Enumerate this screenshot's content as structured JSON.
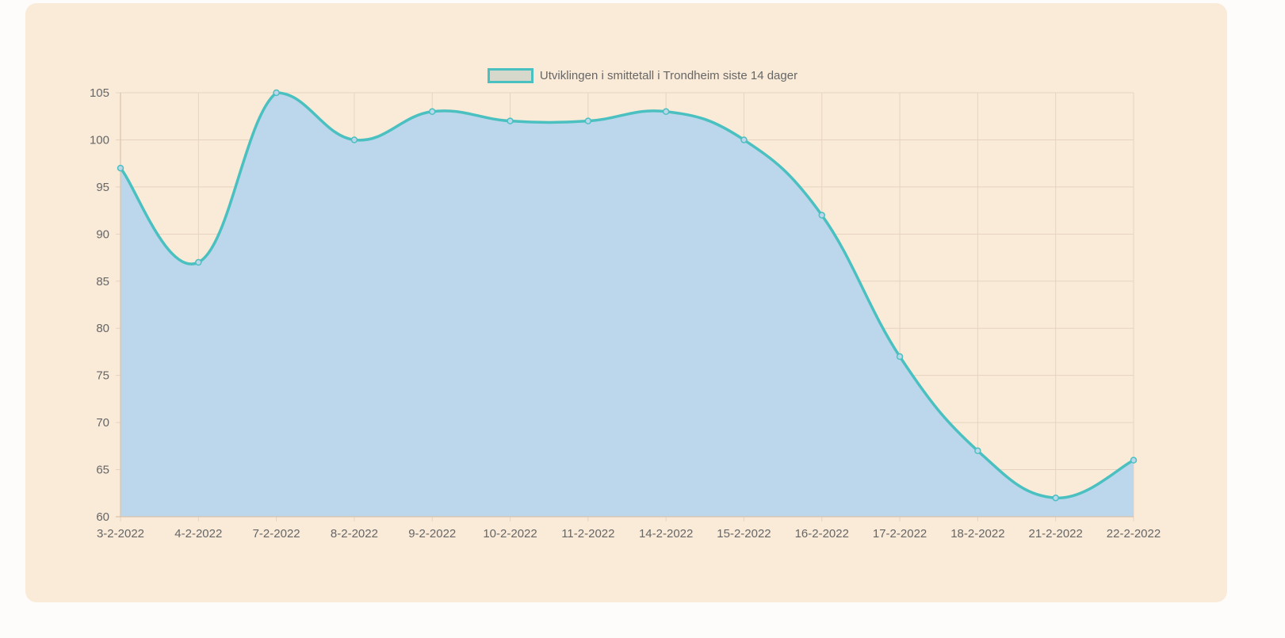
{
  "chart_data": {
    "type": "line",
    "filled": true,
    "title": "",
    "xlabel": "",
    "ylabel": "",
    "categories": [
      "3-2-2022",
      "4-2-2022",
      "7-2-2022",
      "8-2-2022",
      "9-2-2022",
      "10-2-2022",
      "11-2-2022",
      "14-2-2022",
      "15-2-2022",
      "16-2-2022",
      "17-2-2022",
      "18-2-2022",
      "21-2-2022",
      "22-2-2022"
    ],
    "series": [
      {
        "name": "Utviklingen i smittetall i Trondheim siste 14 dager",
        "values": [
          97,
          87,
          105,
          100,
          103,
          102,
          102,
          103,
          100,
          92,
          77,
          67,
          62,
          66
        ]
      }
    ],
    "ylim": [
      60,
      105
    ],
    "yticks": [
      60,
      65,
      70,
      75,
      80,
      85,
      90,
      95,
      100,
      105
    ],
    "grid": true,
    "legend_position": "top",
    "colors": {
      "line": "#4bc0c0",
      "fill": "#bcd7eb",
      "legend_fill": "#d7d8cc",
      "grid": "#e6d3bf",
      "card_background": "#faebd9",
      "page_background": "#fdfcfb",
      "text": "#666666"
    }
  }
}
